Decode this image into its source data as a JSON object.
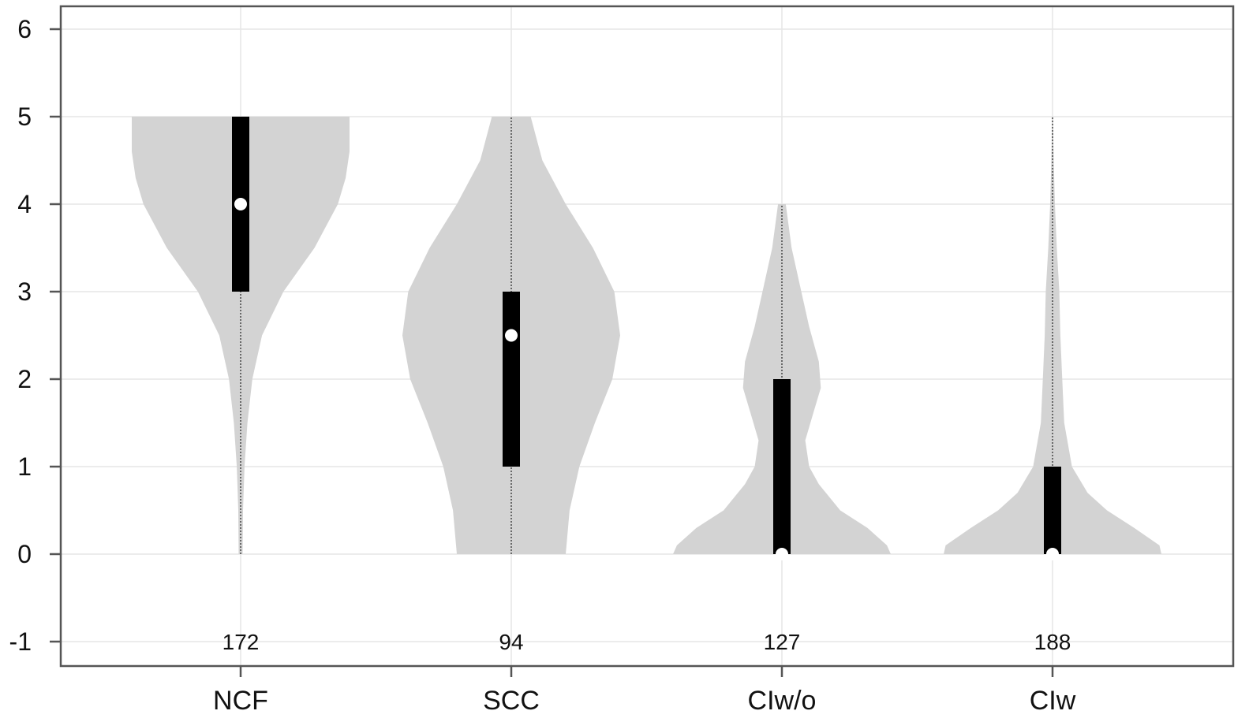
{
  "chart_data": {
    "type": "violin",
    "title": "",
    "xlabel": "",
    "ylabel": "",
    "ylim": [
      -1,
      6
    ],
    "yticks": [
      -1,
      0,
      1,
      2,
      3,
      4,
      5,
      6
    ],
    "ytick_labels": [
      "-1",
      "0",
      "1",
      "2",
      "3",
      "4",
      "5",
      "6"
    ],
    "grid": true,
    "colors": {
      "violin": "#d3d3d3",
      "box": "#000000",
      "median": "#ffffff",
      "whisker": "#444444",
      "grid": "#e6e6e6",
      "frame": "#555555"
    },
    "categories": [
      "NCF",
      "SCC",
      "CIw/o",
      "CIw"
    ],
    "counts": [
      "172",
      "94",
      "127",
      "188"
    ],
    "groups": [
      {
        "name": "NCF",
        "n": 172,
        "min": 0,
        "q1": 3,
        "median": 4,
        "q3": 5,
        "max": 5,
        "density": [
          [
            0,
            0.01
          ],
          [
            0.5,
            0.012
          ],
          [
            1,
            0.02
          ],
          [
            1.5,
            0.035
          ],
          [
            2,
            0.06
          ],
          [
            2.5,
            0.11
          ],
          [
            3,
            0.22
          ],
          [
            3.5,
            0.38
          ],
          [
            4,
            0.5
          ],
          [
            4.3,
            0.54
          ],
          [
            4.6,
            0.56
          ],
          [
            5,
            0.56
          ]
        ]
      },
      {
        "name": "SCC",
        "n": 94,
        "min": 0,
        "q1": 1,
        "median": 2.5,
        "q3": 3,
        "max": 5,
        "density": [
          [
            0,
            0.28
          ],
          [
            0.5,
            0.3
          ],
          [
            1,
            0.35
          ],
          [
            1.5,
            0.43
          ],
          [
            2,
            0.52
          ],
          [
            2.5,
            0.56
          ],
          [
            3,
            0.53
          ],
          [
            3.5,
            0.42
          ],
          [
            4,
            0.28
          ],
          [
            4.5,
            0.16
          ],
          [
            5,
            0.1
          ]
        ]
      },
      {
        "name": "CIw/o",
        "n": 127,
        "min": 0,
        "q1": 0,
        "median": 0,
        "q3": 2,
        "max": 4,
        "density": [
          [
            0,
            0.56
          ],
          [
            0.1,
            0.54
          ],
          [
            0.3,
            0.44
          ],
          [
            0.5,
            0.3
          ],
          [
            0.8,
            0.19
          ],
          [
            1,
            0.14
          ],
          [
            1.3,
            0.12
          ],
          [
            1.6,
            0.16
          ],
          [
            1.9,
            0.2
          ],
          [
            2.2,
            0.19
          ],
          [
            2.6,
            0.14
          ],
          [
            3,
            0.1
          ],
          [
            3.5,
            0.05
          ],
          [
            4,
            0.02
          ]
        ]
      },
      {
        "name": "CIw",
        "n": 188,
        "min": 0,
        "q1": 0,
        "median": 0,
        "q3": 1,
        "max": 5,
        "density": [
          [
            0,
            0.56
          ],
          [
            0.1,
            0.55
          ],
          [
            0.3,
            0.42
          ],
          [
            0.5,
            0.28
          ],
          [
            0.7,
            0.18
          ],
          [
            1,
            0.1
          ],
          [
            1.5,
            0.06
          ],
          [
            2,
            0.05
          ],
          [
            2.5,
            0.04
          ],
          [
            3,
            0.035
          ],
          [
            3.5,
            0.022
          ],
          [
            4,
            0.012
          ],
          [
            4.5,
            0.006
          ],
          [
            5,
            0.002
          ]
        ]
      }
    ]
  }
}
